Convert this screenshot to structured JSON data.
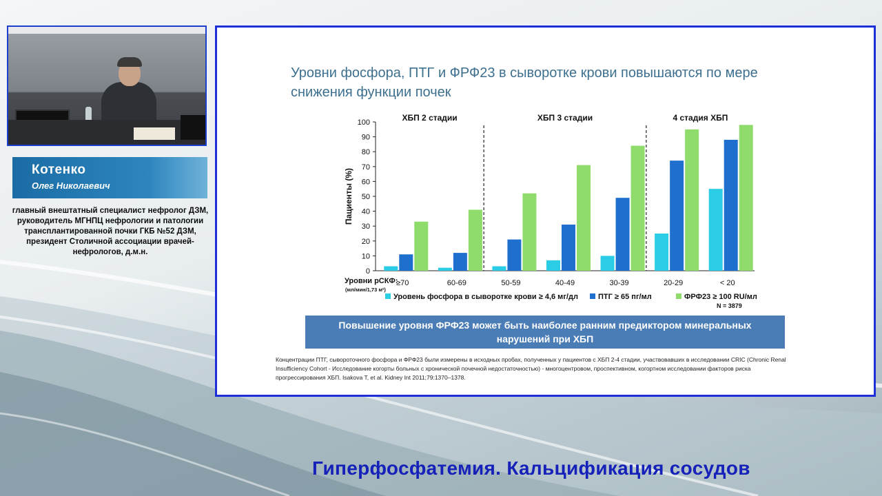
{
  "speaker": {
    "surname": "Котенко",
    "given_names": "Олег Николаевич",
    "bio_lines": [
      "главный внештатный специалист нефролог ДЗМ,",
      "руководитель МГНПЦ нефрологии и патологии",
      "трансплантированной почки ГКБ №52 ДЗМ,",
      "президент Столичной ассоциации врачей-",
      "нефрологов, д.м.н."
    ]
  },
  "slide": {
    "title_line1": "Уровни фосфора, ПТГ и ФРФ23 в сыворотке крови повышаются по мере",
    "title_line2": "снижения функции почек",
    "callout_line1": "Повышение уровня ФРФ23 может быть наиболее ранним предиктором минеральных",
    "callout_line2": "нарушений при ХБП",
    "footnote_lines": [
      "Концентрации ПТГ, сывороточного фосфора и ФРФ23 были измерены в исходных пробах, полученных у пациентов с ХБП 2-4 стадии, участвовавших в исследовании CRIC (Chronic Renal",
      "Insufficiency Cohort - Исследование когорты больных с хронической почечной недостаточностью) - многоцентровом, проспективном, когортном исследовании факторов риска",
      "прогрессирования ХБП. Isakova T, et al. Kidney Int 2011;79:1370–1378."
    ]
  },
  "footer_title": "Гиперфосфатемия. Кальцификация сосудов",
  "chart_data": {
    "type": "bar",
    "title": "",
    "ylabel": "Пациенты (%)",
    "xlabel": "Уровни рСКФ:",
    "xlabel_units": "(мл/мин/1,73 м²)",
    "ylim": [
      0,
      100
    ],
    "yticks": [
      0,
      10,
      20,
      30,
      40,
      50,
      60,
      70,
      80,
      90,
      100
    ],
    "categories": [
      "≥70",
      "60-69",
      "50-59",
      "40-49",
      "30-39",
      "20-29",
      "< 20"
    ],
    "stages": [
      {
        "label": "ХБП 2 стадии",
        "categories": [
          "≥70",
          "60-69"
        ]
      },
      {
        "label": "ХБП 3 стадии",
        "categories": [
          "50-59",
          "40-49",
          "30-39"
        ]
      },
      {
        "label": "4 стадия ХБП",
        "categories": [
          "20-29",
          "< 20"
        ]
      }
    ],
    "series": [
      {
        "name": "Уровень фосфора в сыворотке крови ≥ 4,6 мг/дл",
        "color": "#2bcde6",
        "values": [
          3,
          2,
          3,
          7,
          10,
          25,
          55
        ]
      },
      {
        "name": "ПТГ ≥ 65 пг/мл",
        "color": "#1f6fce",
        "values": [
          11,
          12,
          21,
          31,
          49,
          74,
          88
        ]
      },
      {
        "name": "ФРФ23 ≥ 100 RU/мл",
        "color": "#8fdc6c",
        "values": [
          33,
          41,
          52,
          71,
          84,
          95,
          98
        ]
      }
    ],
    "legend_position": "bottom",
    "note": "N = 3879",
    "grid": false
  }
}
